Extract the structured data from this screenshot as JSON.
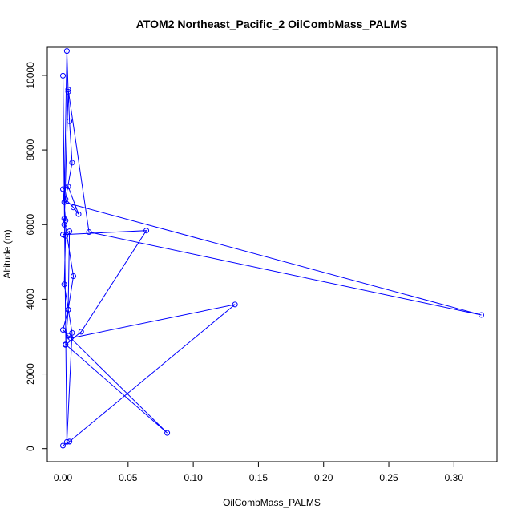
{
  "chart_data": {
    "type": "line",
    "title": "ATOM2 Northeast_Pacific_2 OilCombMass_PALMS",
    "xlabel": "OilCombMass_PALMS",
    "ylabel": "Altitude (m)",
    "xlim": [
      -0.012,
      0.333
    ],
    "ylim": [
      -350,
      10750
    ],
    "xticks": [
      0.0,
      0.05,
      0.1,
      0.15,
      0.2,
      0.25,
      0.3
    ],
    "xtick_labels": [
      "0.00",
      "0.05",
      "0.10",
      "0.15",
      "0.20",
      "0.25",
      "0.30"
    ],
    "yticks": [
      0,
      2000,
      4000,
      6000,
      8000,
      10000
    ],
    "ytick_labels": [
      "0",
      "2000",
      "4000",
      "6000",
      "8000",
      "10000"
    ],
    "grid": false,
    "legend": "none",
    "color": "#0000ff",
    "series": [
      {
        "x": [
          0.0,
          0.005,
          0.005,
          0.132,
          0.006,
          0.08,
          0.002,
          0.004,
          0.0,
          0.004,
          0.002,
          0.014,
          0.064,
          0.0,
          0.005,
          0.004,
          0.008,
          0.001,
          0.002,
          0.0,
          0.004,
          0.012,
          0.008,
          0.002,
          0.007,
          0.005,
          0.004,
          0.02,
          0.321,
          0.001,
          0.003,
          0.004,
          0.001,
          0.002,
          0.001,
          0.007,
          0.003,
          0.0
        ],
        "y": [
          80,
          190,
          190,
          3860,
          2960,
          420,
          2790,
          3020,
          3180,
          3720,
          2780,
          3130,
          5840,
          5730,
          5820,
          3720,
          4620,
          6160,
          6110,
          6950,
          7020,
          6280,
          6460,
          6680,
          7660,
          8770,
          9620,
          5800,
          3580,
          6600,
          10650,
          9560,
          6000,
          5700,
          4400,
          3100,
          180,
          9990
        ]
      }
    ]
  }
}
